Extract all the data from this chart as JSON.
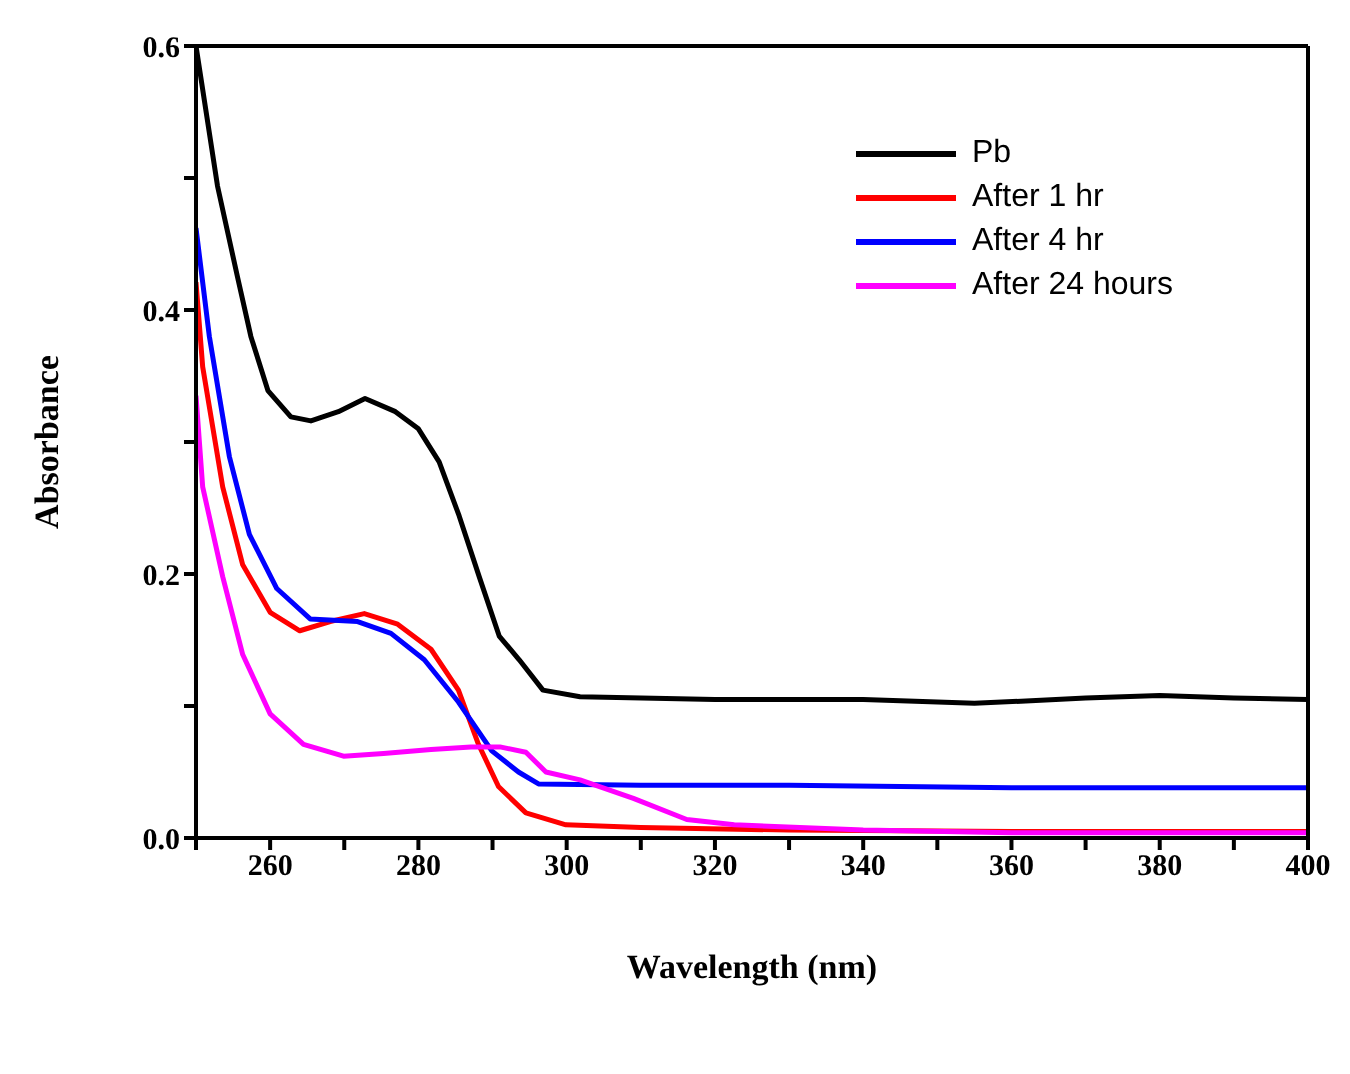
{
  "chart_data": {
    "type": "line",
    "xlabel": "Wavelength (nm)",
    "ylabel": "Absorbance",
    "xlim": [
      250,
      400
    ],
    "ylim": [
      0,
      0.6
    ],
    "xticks": [
      {
        "value": 250,
        "label": null
      },
      260,
      {
        "value": 270,
        "label": null
      },
      280,
      {
        "value": 290,
        "label": null
      },
      300,
      {
        "value": 310,
        "label": null
      },
      320,
      {
        "value": 330,
        "label": null
      },
      340,
      {
        "value": 350,
        "label": null
      },
      360,
      {
        "value": 370,
        "label": null
      },
      380,
      {
        "value": 390,
        "label": null
      },
      400
    ],
    "yticks": [
      {
        "value": 0,
        "label": "0.0"
      },
      {
        "value": 0.1,
        "label": null
      },
      0.2,
      {
        "value": 0.3,
        "label": null
      },
      0.4,
      {
        "value": 0.5,
        "label": null
      },
      0.6
    ],
    "grid": false,
    "legend": "top right",
    "marker": "none",
    "line_style": "solid",
    "series": [
      {
        "name": "Pb",
        "color": "#000000",
        "x": [
          250,
          252.9,
          255.6,
          257.4,
          259.7,
          262.8,
          265.5,
          269.2,
          272.8,
          276.9,
          280,
          282.8,
          285.5,
          288.2,
          290.9,
          293.6,
          296.8,
          301.8,
          320,
          340,
          355,
          370,
          380,
          390,
          400
        ],
        "values": [
          0.6,
          0.494,
          0.425,
          0.38,
          0.339,
          0.319,
          0.316,
          0.323,
          0.333,
          0.323,
          0.31,
          0.285,
          0.244,
          0.198,
          0.153,
          0.135,
          0.112,
          0.107,
          0.105,
          0.105,
          0.102,
          0.106,
          0.108,
          0.106,
          0.105
        ]
      },
      {
        "name": "After 1 hr",
        "color": "#ff0000",
        "x": [
          250,
          250.9,
          253.6,
          256.3,
          260,
          264,
          268.1,
          272.7,
          277.2,
          281.7,
          285.4,
          288.1,
          290.8,
          294.5,
          299.9,
          310,
          330,
          360,
          400
        ],
        "values": [
          0.421,
          0.357,
          0.266,
          0.207,
          0.171,
          0.157,
          0.164,
          0.17,
          0.162,
          0.143,
          0.112,
          0.071,
          0.039,
          0.019,
          0.01,
          0.008,
          0.006,
          0.005,
          0.005
        ]
      },
      {
        "name": "After 4 hr",
        "color": "#0000ff",
        "x": [
          250,
          251.8,
          254.5,
          257.2,
          260.9,
          265.4,
          271.8,
          276.3,
          280.8,
          285.4,
          289.9,
          293.5,
          296.2,
          310,
          330,
          360,
          400
        ],
        "values": [
          0.462,
          0.38,
          0.289,
          0.23,
          0.189,
          0.166,
          0.164,
          0.155,
          0.135,
          0.103,
          0.066,
          0.05,
          0.041,
          0.04,
          0.04,
          0.038,
          0.038
        ]
      },
      {
        "name": "After 24 hours",
        "color": "#ff00ff",
        "x": [
          250,
          250.9,
          253.6,
          256.3,
          260,
          264.5,
          269.9,
          275.3,
          281.7,
          287.1,
          291,
          294.5,
          297.2,
          301.8,
          309,
          316.2,
          322.6,
          340,
          360,
          400
        ],
        "values": [
          0.335,
          0.266,
          0.198,
          0.139,
          0.094,
          0.071,
          0.062,
          0.064,
          0.067,
          0.069,
          0.069,
          0.065,
          0.05,
          0.044,
          0.03,
          0.014,
          0.01,
          0.006,
          0.004,
          0.004
        ]
      }
    ]
  }
}
